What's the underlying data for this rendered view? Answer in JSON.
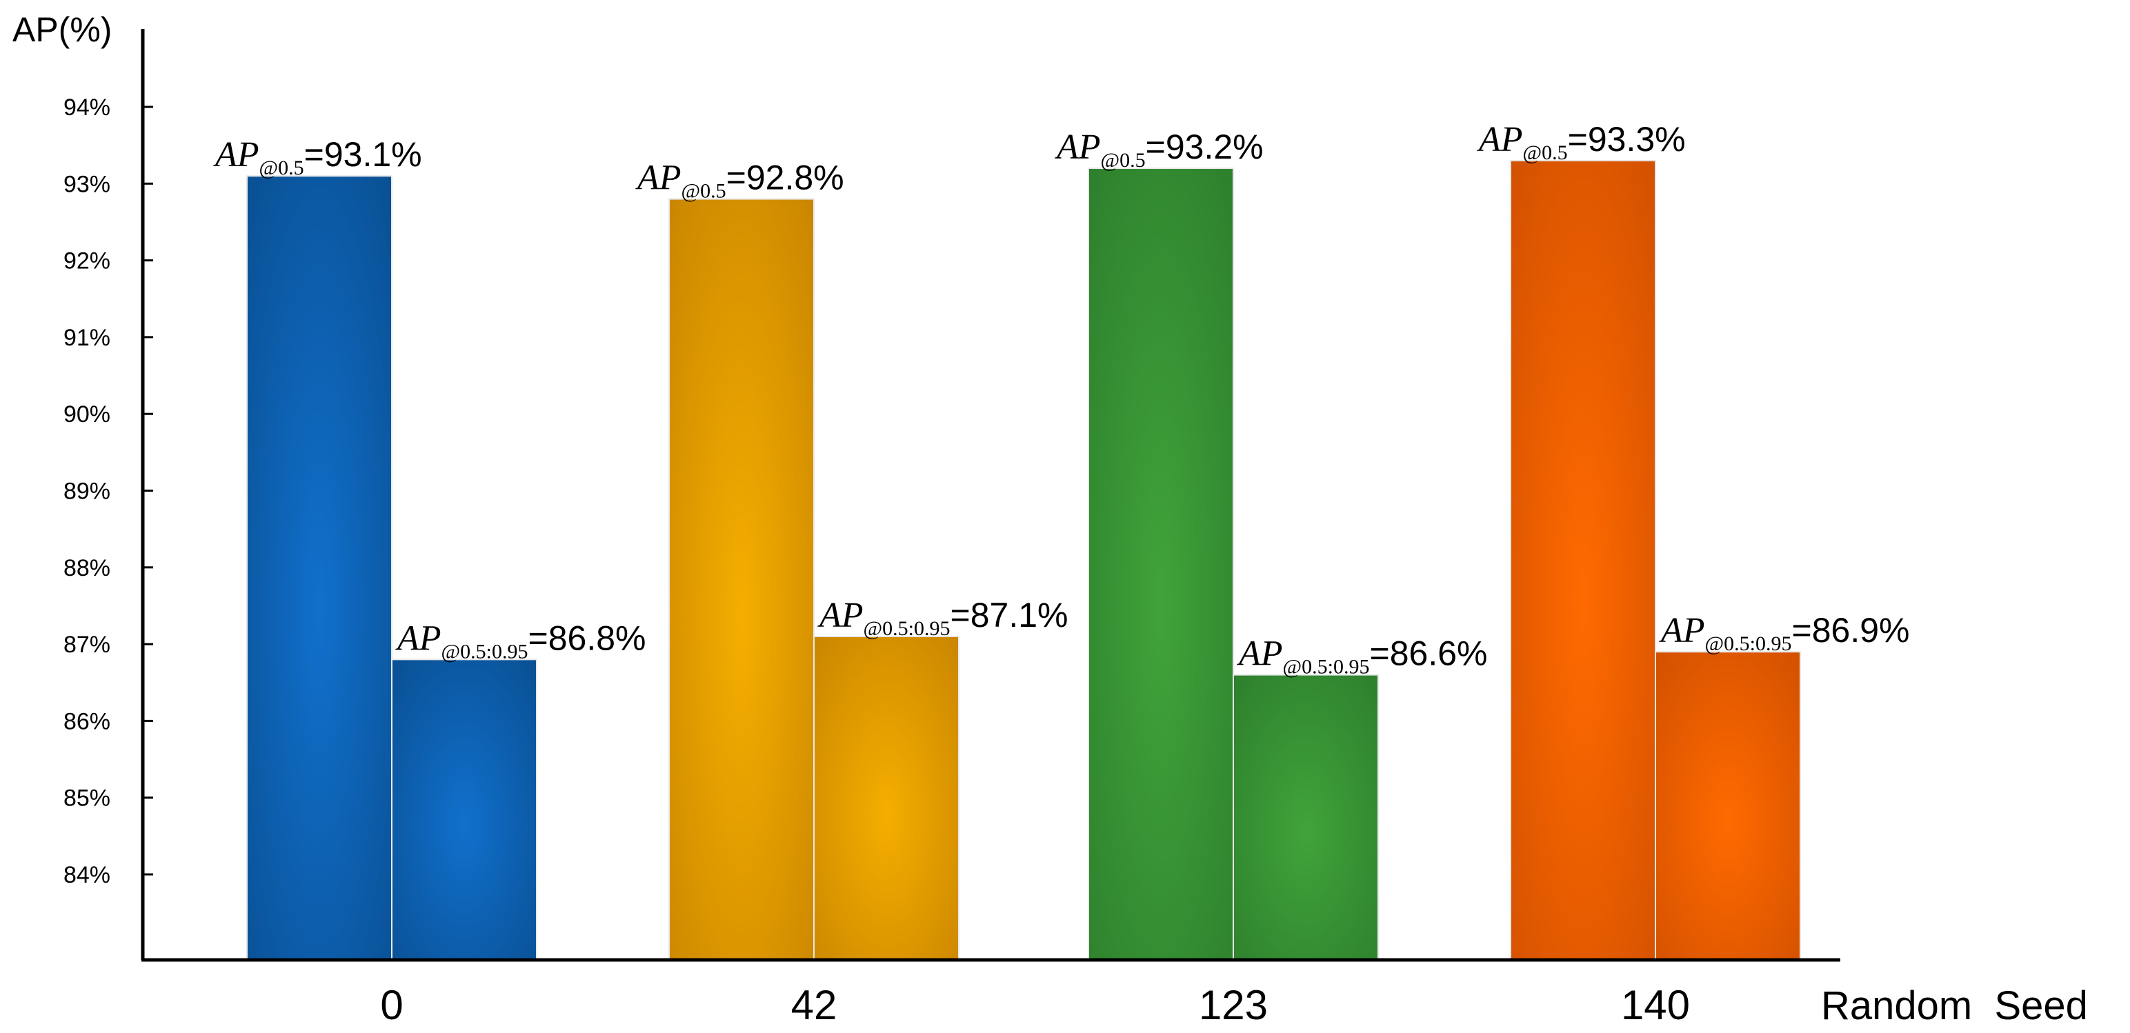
{
  "chart_data": {
    "type": "bar",
    "ylabel": "AP(%)",
    "xlabel": "Random  Seed",
    "categories": [
      "0",
      "42",
      "123",
      "140"
    ],
    "y_ticks": [
      "84%",
      "85%",
      "86%",
      "87%",
      "88%",
      "89%",
      "90%",
      "91%",
      "92%",
      "93%",
      "94%"
    ],
    "ylim": [
      83,
      94.5
    ],
    "series": [
      {
        "name": "AP@0.5",
        "label_main": "AP",
        "label_sub": "@0.5",
        "values": [
          93.1,
          92.8,
          93.2,
          93.3
        ],
        "value_labels": [
          "=93.1%",
          "=92.8%",
          "=93.2%",
          "=93.3%"
        ]
      },
      {
        "name": "AP@0.5:0.95",
        "label_main": "AP",
        "label_sub": "@0.5:0.95",
        "values": [
          86.8,
          87.1,
          86.6,
          86.9
        ],
        "value_labels": [
          "=86.8%",
          "=87.1%",
          "=86.6%",
          "=86.9%"
        ]
      }
    ],
    "category_colors": [
      {
        "dark": "#094f92",
        "light": "#1170cc"
      },
      {
        "dark": "#c98500",
        "light": "#f5ae00"
      },
      {
        "dark": "#2d7f2c",
        "light": "#40a33a"
      },
      {
        "dark": "#d25000",
        "light": "#ff6a00"
      }
    ],
    "grid": false,
    "legend": "none"
  }
}
